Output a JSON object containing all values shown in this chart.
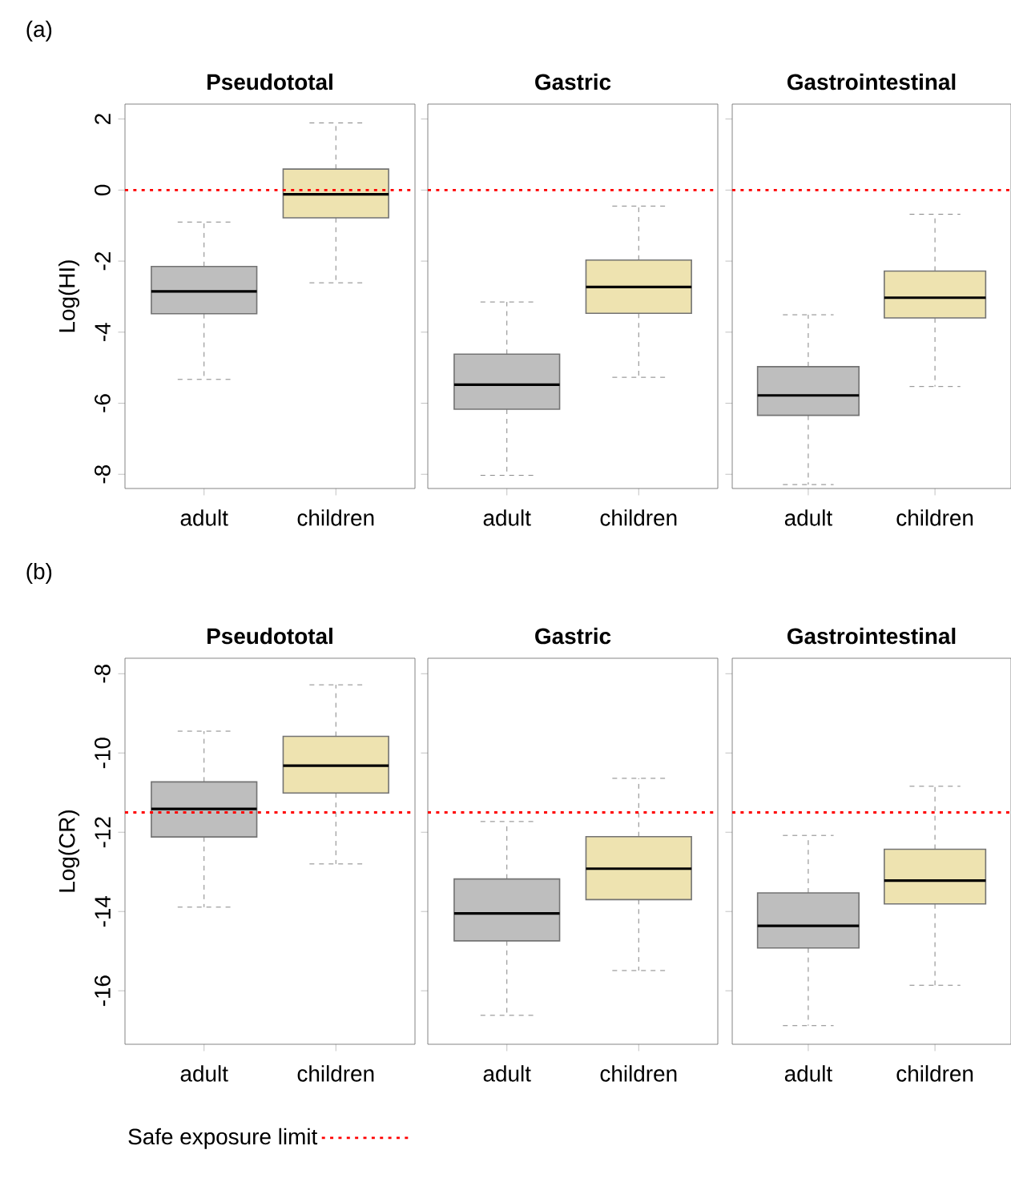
{
  "chart_data": [
    {
      "type": "box",
      "title": "Pseudototal",
      "ylabel": "Log(HI)",
      "annotations": [
        "(a)"
      ],
      "categories": [
        "adult",
        "children"
      ],
      "colors": [
        "#bebebe",
        "#eee3b0"
      ],
      "boxes": [
        {
          "low": -5.33,
          "q1": -3.48,
          "median": -2.85,
          "q3": -2.15,
          "high": -0.9
        },
        {
          "low": -2.61,
          "q1": -0.78,
          "median": -0.12,
          "q3": 0.59,
          "high": 1.89
        }
      ],
      "ylim": [
        -8.4,
        2.42
      ],
      "yticks": [
        -8,
        -6,
        -4,
        -2,
        0,
        2
      ],
      "ref_lines": [
        {
          "axis": "y",
          "value": 0,
          "color": "#ff0000",
          "line_style": "dotted"
        }
      ]
    },
    {
      "type": "box",
      "title": "Gastric",
      "categories": [
        "adult",
        "children"
      ],
      "colors": [
        "#bebebe",
        "#eee3b0"
      ],
      "boxes": [
        {
          "low": -8.03,
          "q1": -6.17,
          "median": -5.48,
          "q3": -4.62,
          "high": -3.15
        },
        {
          "low": -5.27,
          "q1": -3.47,
          "median": -2.73,
          "q3": -1.97,
          "high": -0.45
        }
      ],
      "ylim": [
        -8.4,
        2.42
      ],
      "yticks": [
        -8,
        -6,
        -4,
        -2,
        0,
        2
      ],
      "tick_labels": "x",
      "ref_lines": [
        {
          "axis": "y",
          "value": 0,
          "color": "#ff0000",
          "line_style": "dotted"
        }
      ]
    },
    {
      "type": "box",
      "title": "Gastrointestinal",
      "categories": [
        "adult",
        "children"
      ],
      "colors": [
        "#bebebe",
        "#eee3b0"
      ],
      "boxes": [
        {
          "low": -8.29,
          "q1": -6.34,
          "median": -5.78,
          "q3": -4.97,
          "high": -3.51
        },
        {
          "low": -5.53,
          "q1": -3.6,
          "median": -3.03,
          "q3": -2.28,
          "high": -0.68
        }
      ],
      "ylim": [
        -8.4,
        2.42
      ],
      "yticks": [
        -8,
        -6,
        -4,
        -2,
        0,
        2
      ],
      "tick_labels": "x",
      "ref_lines": [
        {
          "axis": "y",
          "value": 0,
          "color": "#ff0000",
          "line_style": "dotted"
        }
      ]
    },
    {
      "type": "box",
      "title": "Pseudototal",
      "ylabel": "Log(CR)",
      "annotations": [
        "(b)"
      ],
      "categories": [
        "adult",
        "children"
      ],
      "colors": [
        "#bebebe",
        "#eee3b0"
      ],
      "boxes": [
        {
          "low": -13.89,
          "q1": -12.12,
          "median": -11.41,
          "q3": -10.73,
          "high": -9.45
        },
        {
          "low": -12.8,
          "q1": -11.01,
          "median": -10.32,
          "q3": -9.58,
          "high": -8.28
        }
      ],
      "ylim": [
        -17.35,
        -7.61
      ],
      "yticks": [
        -16,
        -14,
        -12,
        -10,
        -8
      ],
      "legend": "bottom",
      "ref_lines": [
        {
          "axis": "y",
          "value": -11.5,
          "color": "#ff0000",
          "line_style": "dotted",
          "label": "Safe exposure limit"
        }
      ]
    },
    {
      "type": "box",
      "title": "Gastric",
      "categories": [
        "adult",
        "children"
      ],
      "colors": [
        "#bebebe",
        "#eee3b0"
      ],
      "boxes": [
        {
          "low": -16.62,
          "q1": -14.74,
          "median": -14.05,
          "q3": -13.18,
          "high": -11.73
        },
        {
          "low": -15.49,
          "q1": -13.7,
          "median": -12.92,
          "q3": -12.11,
          "high": -10.64
        }
      ],
      "ylim": [
        -17.35,
        -7.61
      ],
      "yticks": [
        -16,
        -14,
        -12,
        -10,
        -8
      ],
      "tick_labels": "x",
      "ref_lines": [
        {
          "axis": "y",
          "value": -11.5,
          "color": "#ff0000",
          "line_style": "dotted"
        }
      ]
    },
    {
      "type": "box",
      "title": "Gastrointestinal",
      "categories": [
        "adult",
        "children"
      ],
      "colors": [
        "#bebebe",
        "#eee3b0"
      ],
      "boxes": [
        {
          "low": -16.88,
          "q1": -14.92,
          "median": -14.36,
          "q3": -13.53,
          "high": -12.08
        },
        {
          "low": -15.86,
          "q1": -13.81,
          "median": -13.22,
          "q3": -12.43,
          "high": -10.84
        }
      ],
      "ylim": [
        -17.35,
        -7.61
      ],
      "yticks": [
        -16,
        -14,
        -12,
        -10,
        -8
      ],
      "tick_labels": "x",
      "ref_lines": [
        {
          "axis": "y",
          "value": -11.5,
          "color": "#ff0000",
          "line_style": "dotted"
        }
      ]
    }
  ]
}
